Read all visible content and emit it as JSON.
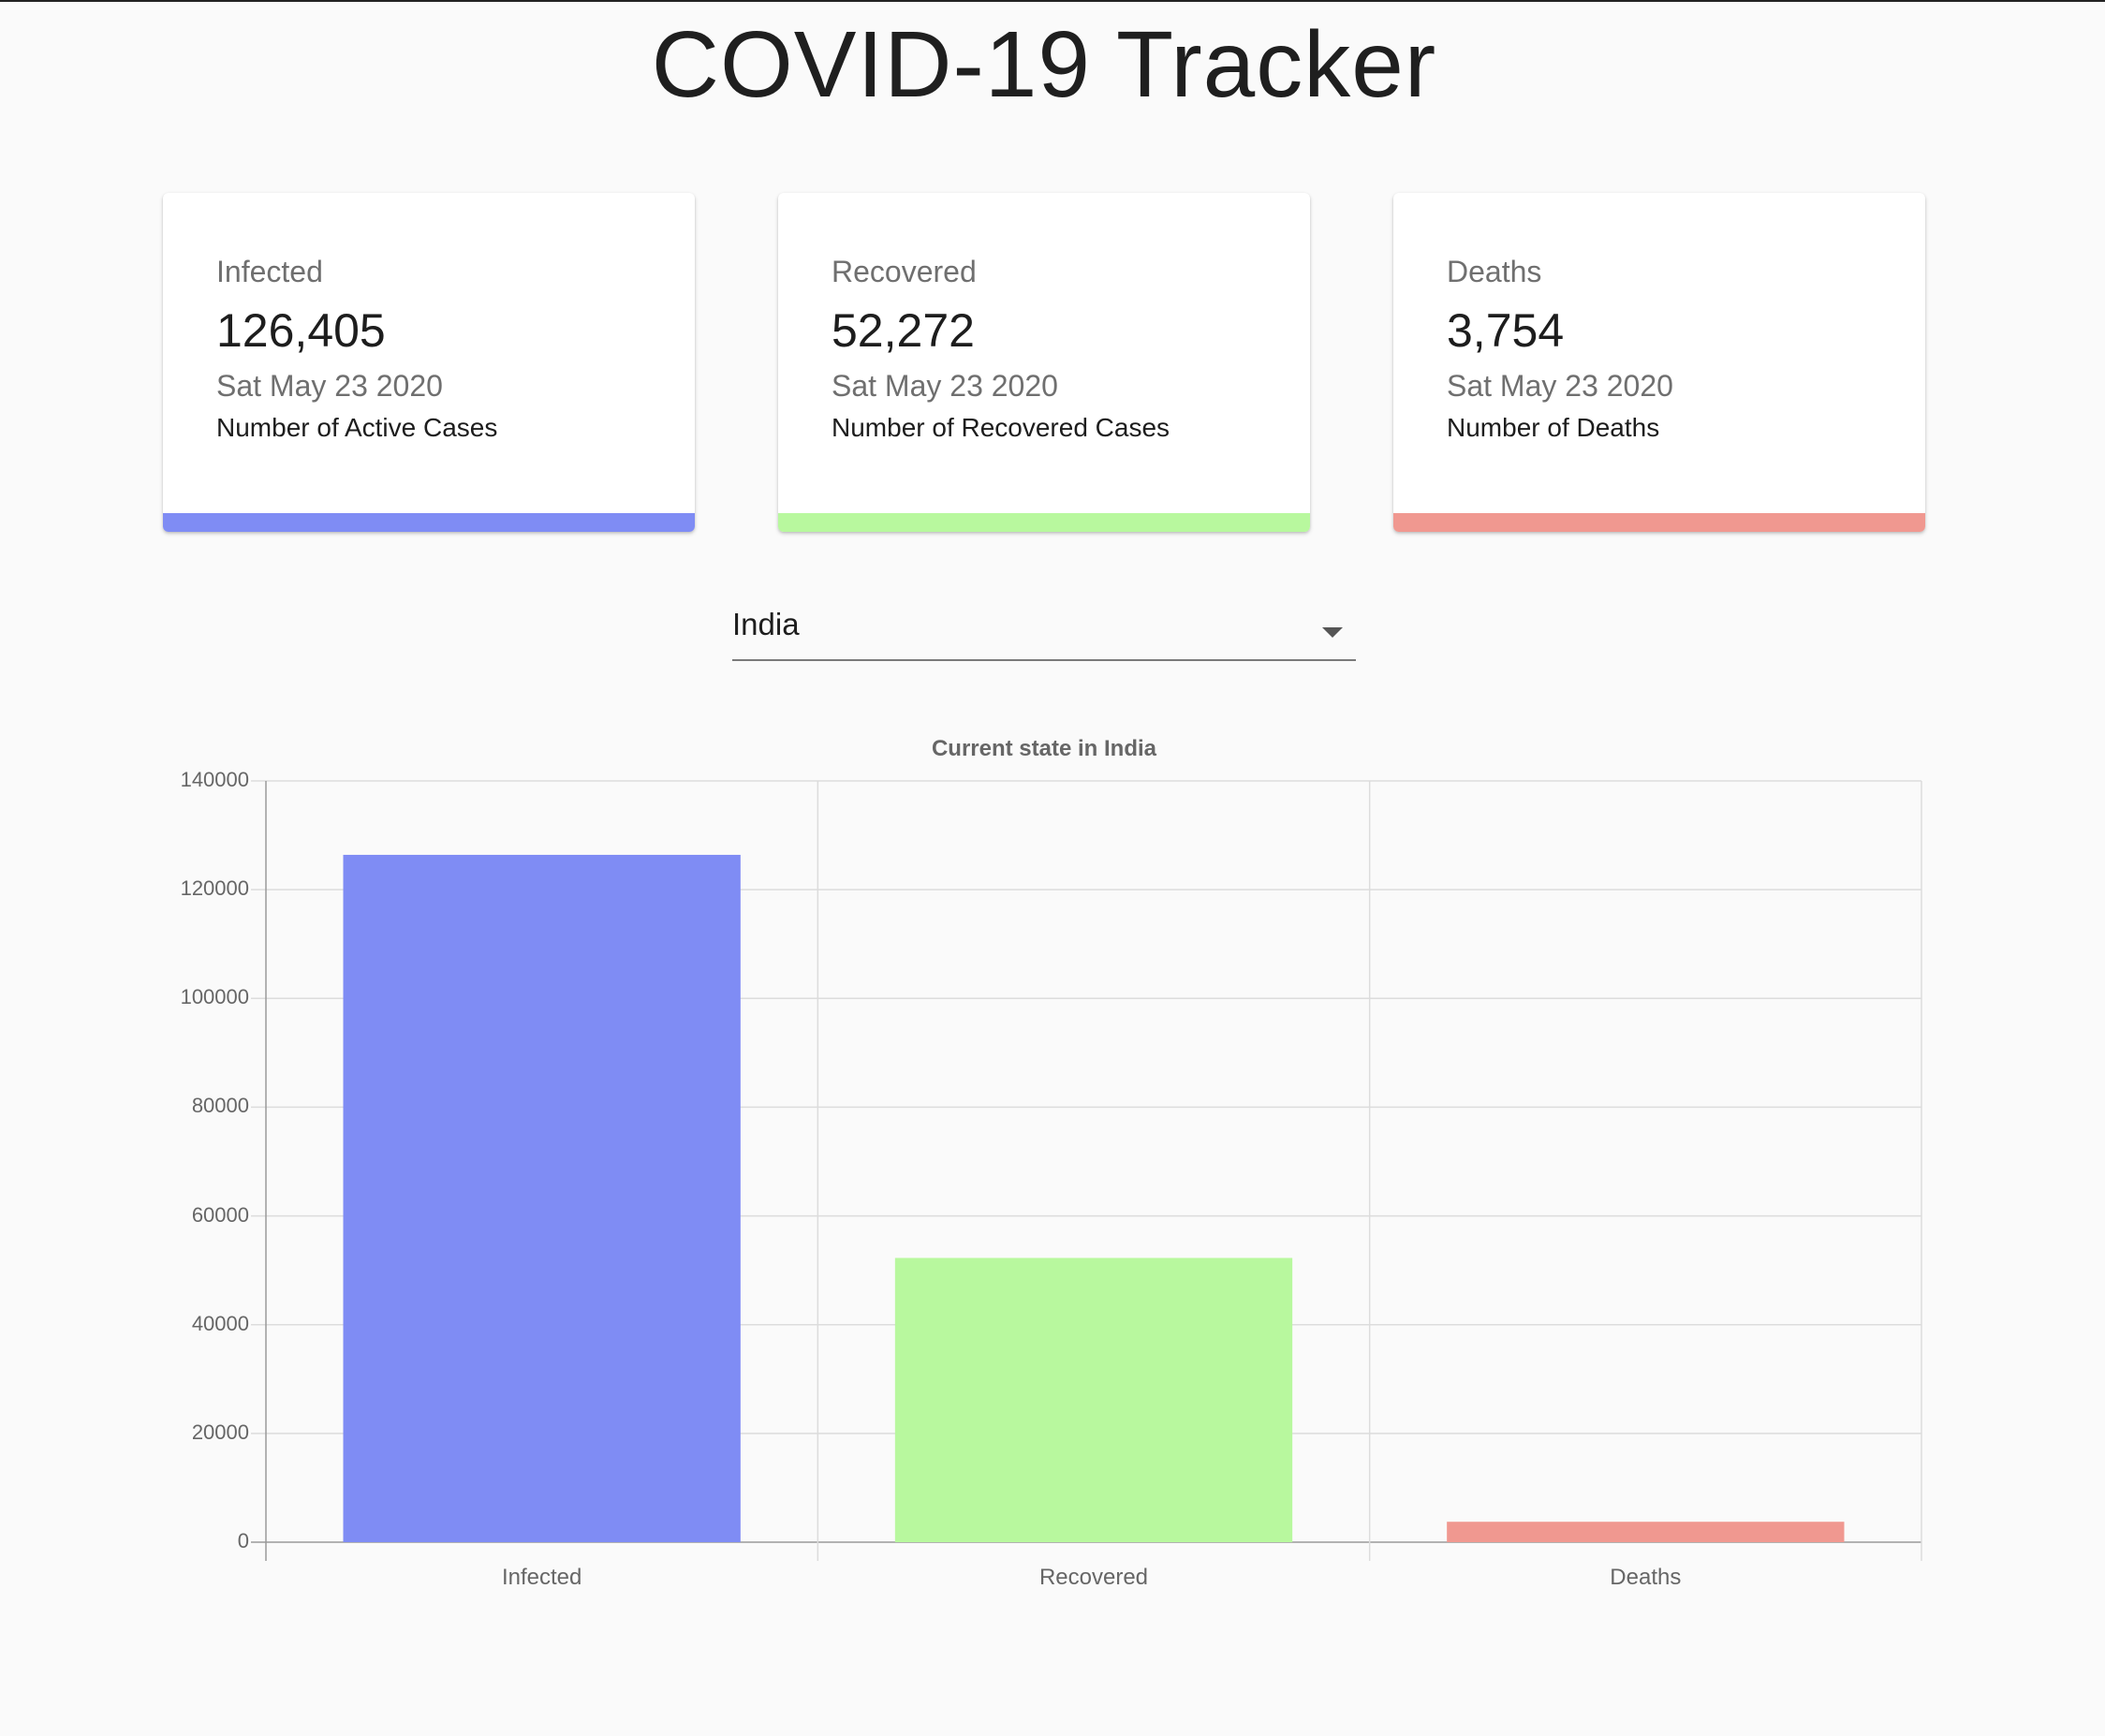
{
  "app": {
    "title": "COVID-19 Tracker"
  },
  "cards": [
    {
      "label": "Infected",
      "value": "126,405",
      "date": "Sat May 23 2020",
      "description": "Number of Active Cases",
      "color": "#7f8cf4"
    },
    {
      "label": "Recovered",
      "value": "52,272",
      "date": "Sat May 23 2020",
      "description": "Number of Recovered Cases",
      "color": "#b8f89e"
    },
    {
      "label": "Deaths",
      "value": "3,754",
      "date": "Sat May 23 2020",
      "description": "Number of Deaths",
      "color": "#f09890"
    }
  ],
  "country_select": {
    "value": "India",
    "icon": "chevron-down-icon"
  },
  "chart_data": {
    "type": "bar",
    "title": "Current state in India",
    "categories": [
      "Infected",
      "Recovered",
      "Deaths"
    ],
    "values": [
      126405,
      52272,
      3754
    ],
    "colors": [
      "#7f8cf4",
      "#b8f89e",
      "#f09890"
    ],
    "ylim": [
      0,
      140000
    ],
    "yticks": [
      "140000",
      "120000",
      "100000",
      "80000",
      "60000",
      "40000",
      "20000",
      "0"
    ],
    "grid": true,
    "legend": "none"
  }
}
